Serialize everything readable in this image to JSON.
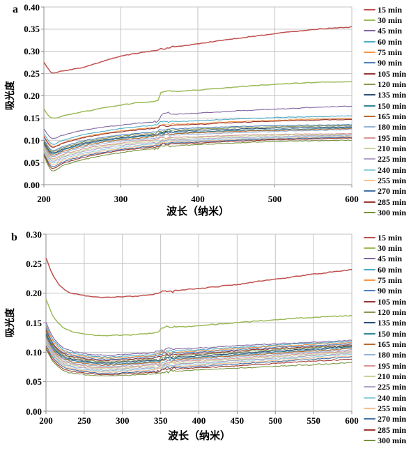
{
  "figure": {
    "panel_a": {
      "letter": "a",
      "ylabel": "吸光度",
      "xlabel": "波长（纳米）"
    },
    "panel_b": {
      "letter": "b",
      "ylabel": "吸光度",
      "xlabel": "波长（纳米）"
    },
    "colors": {
      "grid": "#c3c3c3",
      "axis": "#8c8c8c",
      "background": "#ffffff"
    }
  },
  "chart_data": [
    {
      "panel": "a",
      "type": "line",
      "title": "",
      "xlabel": "波长（纳米）",
      "ylabel": "吸光度",
      "xlim": [
        200,
        600
      ],
      "ylim": [
        0,
        0.4
      ],
      "x_tick_step": 100,
      "y_tick_step": 0.05,
      "x_ticks": [
        200,
        300,
        400,
        500,
        600
      ],
      "y_ticks": [
        "0.40",
        "0.35",
        "0.30",
        "0.25",
        "0.20",
        "0.15",
        "0.10",
        "0.05",
        "0.00"
      ],
      "grid": true,
      "legend_position": "right",
      "x": [
        200,
        210,
        225,
        250,
        275,
        300,
        325,
        348,
        352,
        375,
        400,
        450,
        500,
        550,
        600
      ],
      "series": [
        {
          "name": "15 min",
          "color": "#C0504D",
          "values": [
            0.275,
            0.253,
            0.256,
            0.264,
            0.277,
            0.289,
            0.297,
            0.303,
            0.305,
            0.311,
            0.317,
            0.329,
            0.34,
            0.349,
            0.355
          ]
        },
        {
          "name": "30 min",
          "color": "#9BBB59",
          "values": [
            0.17,
            0.15,
            0.155,
            0.164,
            0.172,
            0.179,
            0.185,
            0.19,
            0.207,
            0.21,
            0.213,
            0.22,
            0.226,
            0.23,
            0.232
          ]
        },
        {
          "name": "45 min",
          "color": "#8064A2",
          "values": [
            0.125,
            0.105,
            0.112,
            0.122,
            0.129,
            0.134,
            0.139,
            0.143,
            0.157,
            0.159,
            0.161,
            0.166,
            0.17,
            0.174,
            0.177
          ]
        },
        {
          "name": "60 min",
          "color": "#4BACC6",
          "values": [
            0.115,
            0.092,
            0.1,
            0.112,
            0.12,
            0.126,
            0.131,
            0.135,
            0.14,
            0.142,
            0.144,
            0.148,
            0.151,
            0.153,
            0.155
          ]
        },
        {
          "name": "75 min",
          "color": "#F79646",
          "values": [
            0.11,
            0.087,
            0.095,
            0.107,
            0.115,
            0.121,
            0.126,
            0.13,
            0.134,
            0.136,
            0.138,
            0.142,
            0.145,
            0.147,
            0.149
          ]
        },
        {
          "name": "90 min",
          "color": "#4F81BD",
          "values": [
            0.1,
            0.078,
            0.086,
            0.098,
            0.106,
            0.112,
            0.116,
            0.12,
            0.124,
            0.126,
            0.128,
            0.131,
            0.133,
            0.134,
            0.135
          ]
        },
        {
          "name": "105 min",
          "color": "#943634",
          "values": [
            0.108,
            0.085,
            0.093,
            0.105,
            0.113,
            0.119,
            0.124,
            0.128,
            0.132,
            0.134,
            0.136,
            0.14,
            0.143,
            0.145,
            0.147
          ]
        },
        {
          "name": "120 min",
          "color": "#89984F",
          "values": [
            0.098,
            0.075,
            0.083,
            0.095,
            0.103,
            0.109,
            0.113,
            0.117,
            0.121,
            0.123,
            0.125,
            0.128,
            0.13,
            0.132,
            0.133
          ]
        },
        {
          "name": "135 min",
          "color": "#2C4D75",
          "values": [
            0.095,
            0.072,
            0.08,
            0.092,
            0.1,
            0.106,
            0.11,
            0.114,
            0.118,
            0.12,
            0.122,
            0.125,
            0.127,
            0.129,
            0.13
          ]
        },
        {
          "name": "150 min",
          "color": "#31849B",
          "values": [
            0.092,
            0.07,
            0.078,
            0.09,
            0.098,
            0.104,
            0.108,
            0.112,
            0.116,
            0.118,
            0.119,
            0.122,
            0.124,
            0.126,
            0.128
          ]
        },
        {
          "name": "165 min",
          "color": "#B8692E",
          "values": [
            0.09,
            0.067,
            0.075,
            0.087,
            0.095,
            0.101,
            0.105,
            0.109,
            0.113,
            0.115,
            0.117,
            0.12,
            0.122,
            0.124,
            0.126
          ]
        },
        {
          "name": "180 min",
          "color": "#95B3D7",
          "values": [
            0.087,
            0.064,
            0.072,
            0.084,
            0.092,
            0.098,
            0.102,
            0.106,
            0.11,
            0.112,
            0.114,
            0.117,
            0.12,
            0.122,
            0.124
          ]
        },
        {
          "name": "195 min",
          "color": "#D99694",
          "values": [
            0.084,
            0.06,
            0.068,
            0.08,
            0.088,
            0.094,
            0.098,
            0.102,
            0.105,
            0.107,
            0.108,
            0.111,
            0.113,
            0.114,
            0.115
          ]
        },
        {
          "name": "210 min",
          "color": "#C3D69B",
          "values": [
            0.081,
            0.057,
            0.065,
            0.077,
            0.085,
            0.091,
            0.095,
            0.099,
            0.102,
            0.104,
            0.106,
            0.109,
            0.111,
            0.112,
            0.113
          ]
        },
        {
          "name": "225 min",
          "color": "#B2A2C7",
          "values": [
            0.078,
            0.054,
            0.062,
            0.074,
            0.082,
            0.088,
            0.092,
            0.096,
            0.099,
            0.101,
            0.103,
            0.106,
            0.108,
            0.11,
            0.112
          ]
        },
        {
          "name": "240 min",
          "color": "#92CDDC",
          "values": [
            0.075,
            0.05,
            0.058,
            0.07,
            0.078,
            0.084,
            0.089,
            0.093,
            0.096,
            0.098,
            0.1,
            0.103,
            0.106,
            0.108,
            0.11
          ]
        },
        {
          "name": "255 min",
          "color": "#FABF8F",
          "values": [
            0.072,
            0.046,
            0.055,
            0.067,
            0.075,
            0.081,
            0.086,
            0.09,
            0.094,
            0.096,
            0.098,
            0.101,
            0.104,
            0.106,
            0.109
          ]
        },
        {
          "name": "270 min",
          "color": "#4472A8",
          "values": [
            0.07,
            0.042,
            0.051,
            0.064,
            0.072,
            0.079,
            0.084,
            0.088,
            0.092,
            0.094,
            0.096,
            0.1,
            0.103,
            0.105,
            0.107
          ]
        },
        {
          "name": "285 min",
          "color": "#A0362F",
          "values": [
            0.068,
            0.038,
            0.048,
            0.061,
            0.07,
            0.077,
            0.082,
            0.086,
            0.09,
            0.092,
            0.094,
            0.098,
            0.101,
            0.103,
            0.105
          ]
        },
        {
          "name": "300 min",
          "color": "#77933C",
          "values": [
            0.065,
            0.032,
            0.043,
            0.056,
            0.065,
            0.072,
            0.078,
            0.082,
            0.086,
            0.088,
            0.09,
            0.094,
            0.097,
            0.099,
            0.1
          ]
        }
      ]
    },
    {
      "panel": "b",
      "type": "line",
      "title": "",
      "xlabel": "波长（纳米）",
      "ylabel": "吸光度",
      "xlim": [
        200,
        600
      ],
      "ylim": [
        0,
        0.3
      ],
      "x_tick_step": 50,
      "y_tick_step": 0.05,
      "x_ticks": [
        200,
        250,
        300,
        350,
        400,
        450,
        500,
        550,
        600
      ],
      "y_ticks": [
        "0.30",
        "0.25",
        "0.20",
        "0.15",
        "0.10",
        "0.05",
        "0.00"
      ],
      "grid": true,
      "legend_position": "right",
      "x": [
        200,
        210,
        225,
        250,
        275,
        300,
        325,
        348,
        352,
        375,
        400,
        450,
        500,
        550,
        600
      ],
      "series": [
        {
          "name": "15 min",
          "color": "#C0504D",
          "values": [
            0.26,
            0.228,
            0.205,
            0.196,
            0.193,
            0.194,
            0.196,
            0.199,
            0.202,
            0.205,
            0.208,
            0.215,
            0.224,
            0.232,
            0.24
          ]
        },
        {
          "name": "30 min",
          "color": "#9BBB59",
          "values": [
            0.19,
            0.16,
            0.14,
            0.131,
            0.128,
            0.129,
            0.131,
            0.134,
            0.141,
            0.143,
            0.145,
            0.15,
            0.155,
            0.159,
            0.162
          ]
        },
        {
          "name": "45 min",
          "color": "#8064A2",
          "values": [
            0.15,
            0.124,
            0.106,
            0.098,
            0.095,
            0.096,
            0.098,
            0.1,
            0.104,
            0.106,
            0.107,
            0.111,
            0.114,
            0.117,
            0.12
          ]
        },
        {
          "name": "60 min",
          "color": "#4BACC6",
          "values": [
            0.146,
            0.12,
            0.103,
            0.095,
            0.092,
            0.093,
            0.095,
            0.097,
            0.101,
            0.103,
            0.104,
            0.108,
            0.112,
            0.115,
            0.118
          ]
        },
        {
          "name": "75 min",
          "color": "#F79646",
          "values": [
            0.143,
            0.117,
            0.1,
            0.093,
            0.09,
            0.091,
            0.093,
            0.095,
            0.099,
            0.1,
            0.102,
            0.106,
            0.11,
            0.113,
            0.116
          ]
        },
        {
          "name": "90 min",
          "color": "#4F81BD",
          "values": [
            0.14,
            0.114,
            0.098,
            0.091,
            0.088,
            0.089,
            0.091,
            0.093,
            0.096,
            0.098,
            0.1,
            0.104,
            0.108,
            0.111,
            0.114
          ]
        },
        {
          "name": "105 min",
          "color": "#943634",
          "values": [
            0.137,
            0.112,
            0.096,
            0.089,
            0.086,
            0.087,
            0.089,
            0.091,
            0.094,
            0.096,
            0.098,
            0.102,
            0.106,
            0.109,
            0.112
          ]
        },
        {
          "name": "120 min",
          "color": "#89984F",
          "values": [
            0.134,
            0.11,
            0.094,
            0.087,
            0.084,
            0.085,
            0.087,
            0.089,
            0.092,
            0.094,
            0.096,
            0.1,
            0.104,
            0.108,
            0.111
          ]
        },
        {
          "name": "135 min",
          "color": "#2C4D75",
          "values": [
            0.131,
            0.107,
            0.092,
            0.085,
            0.082,
            0.083,
            0.085,
            0.087,
            0.09,
            0.092,
            0.094,
            0.098,
            0.102,
            0.106,
            0.11
          ]
        },
        {
          "name": "150 min",
          "color": "#31849B",
          "values": [
            0.129,
            0.105,
            0.09,
            0.083,
            0.08,
            0.081,
            0.083,
            0.085,
            0.088,
            0.09,
            0.092,
            0.096,
            0.1,
            0.104,
            0.108
          ]
        },
        {
          "name": "165 min",
          "color": "#B8692E",
          "values": [
            0.126,
            0.103,
            0.088,
            0.081,
            0.078,
            0.079,
            0.081,
            0.083,
            0.086,
            0.088,
            0.09,
            0.094,
            0.098,
            0.102,
            0.106
          ]
        },
        {
          "name": "180 min",
          "color": "#95B3D7",
          "values": [
            0.124,
            0.101,
            0.086,
            0.079,
            0.076,
            0.077,
            0.079,
            0.081,
            0.084,
            0.086,
            0.088,
            0.092,
            0.096,
            0.1,
            0.104
          ]
        },
        {
          "name": "195 min",
          "color": "#D99694",
          "values": [
            0.121,
            0.099,
            0.084,
            0.077,
            0.074,
            0.075,
            0.077,
            0.079,
            0.082,
            0.084,
            0.086,
            0.09,
            0.094,
            0.098,
            0.102
          ]
        },
        {
          "name": "210 min",
          "color": "#C3D69B",
          "values": [
            0.119,
            0.097,
            0.082,
            0.075,
            0.072,
            0.073,
            0.075,
            0.077,
            0.08,
            0.082,
            0.084,
            0.088,
            0.092,
            0.096,
            0.1
          ]
        },
        {
          "name": "225 min",
          "color": "#B2A2C7",
          "values": [
            0.117,
            0.095,
            0.08,
            0.073,
            0.07,
            0.071,
            0.073,
            0.075,
            0.078,
            0.08,
            0.082,
            0.086,
            0.09,
            0.094,
            0.098
          ]
        },
        {
          "name": "240 min",
          "color": "#92CDDC",
          "values": [
            0.115,
            0.093,
            0.078,
            0.071,
            0.068,
            0.069,
            0.071,
            0.073,
            0.076,
            0.078,
            0.08,
            0.084,
            0.088,
            0.092,
            0.096
          ]
        },
        {
          "name": "255 min",
          "color": "#FABF8F",
          "values": [
            0.113,
            0.091,
            0.076,
            0.069,
            0.066,
            0.067,
            0.069,
            0.071,
            0.074,
            0.076,
            0.078,
            0.082,
            0.086,
            0.09,
            0.094
          ]
        },
        {
          "name": "270 min",
          "color": "#4472A8",
          "values": [
            0.111,
            0.089,
            0.074,
            0.067,
            0.064,
            0.065,
            0.067,
            0.069,
            0.072,
            0.074,
            0.076,
            0.08,
            0.084,
            0.088,
            0.092
          ]
        },
        {
          "name": "285 min",
          "color": "#A0362F",
          "values": [
            0.108,
            0.086,
            0.071,
            0.065,
            0.062,
            0.063,
            0.065,
            0.067,
            0.07,
            0.072,
            0.074,
            0.077,
            0.081,
            0.085,
            0.088
          ]
        },
        {
          "name": "300 min",
          "color": "#77933C",
          "values": [
            0.105,
            0.083,
            0.068,
            0.062,
            0.06,
            0.061,
            0.062,
            0.064,
            0.066,
            0.068,
            0.07,
            0.073,
            0.076,
            0.079,
            0.082
          ]
        }
      ]
    }
  ]
}
